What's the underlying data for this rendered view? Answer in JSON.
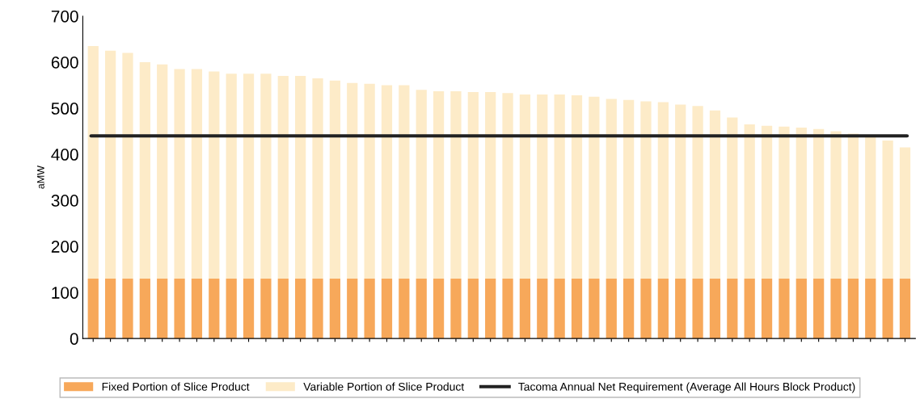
{
  "chart_data": {
    "type": "bar",
    "stacked": true,
    "ylabel": "aMW",
    "categories": [
      null,
      null,
      null,
      null,
      null,
      null,
      null,
      null,
      null,
      null,
      null,
      null,
      null,
      null,
      null,
      null,
      null,
      null,
      null,
      null,
      null,
      null,
      null,
      null,
      null,
      null,
      null,
      null,
      null,
      null,
      null,
      null,
      null,
      null,
      null,
      null,
      null,
      null,
      null,
      null,
      null,
      null,
      null,
      null,
      null,
      null,
      null,
      null
    ],
    "series": [
      {
        "name": "Fixed Portion of Slice Product",
        "color": "#f7a85a",
        "values": [
          130,
          130,
          130,
          130,
          130,
          130,
          130,
          130,
          130,
          130,
          130,
          130,
          130,
          130,
          130,
          130,
          130,
          130,
          130,
          130,
          130,
          130,
          130,
          130,
          130,
          130,
          130,
          130,
          130,
          130,
          130,
          130,
          130,
          130,
          130,
          130,
          130,
          130,
          130,
          130,
          130,
          130,
          130,
          130,
          130,
          130,
          130,
          130
        ]
      },
      {
        "name": "Variable Portion of Slice Product",
        "color": "#fdebc8",
        "values": [
          505,
          495,
          490,
          470,
          465,
          455,
          455,
          450,
          445,
          445,
          445,
          440,
          440,
          435,
          430,
          425,
          423,
          420,
          420,
          410,
          407,
          407,
          405,
          405,
          403,
          400,
          400,
          400,
          398,
          395,
          390,
          388,
          385,
          383,
          378,
          375,
          365,
          350,
          335,
          332,
          330,
          328,
          325,
          320,
          315,
          310,
          300,
          285
        ]
      }
    ],
    "ref_lines": [
      {
        "axis": "y",
        "value": 440,
        "label": "Tacoma Annual Net Requirement (Average All Hours Block Product)",
        "color": "#222222"
      }
    ],
    "ylim": [
      0,
      700
    ],
    "yticks": [
      0,
      100,
      200,
      300,
      400,
      500,
      600,
      700
    ],
    "grid": false,
    "legend": "bottom"
  }
}
